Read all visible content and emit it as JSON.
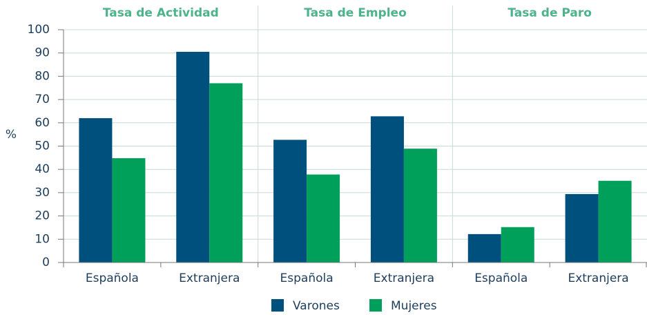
{
  "chart_data": {
    "type": "bar",
    "groups": [
      "Tasa de Actividad",
      "Tasa de Empleo",
      "Tasa de Paro"
    ],
    "categories": [
      "Española",
      "Extranjera",
      "Española",
      "Extranjera",
      "Española",
      "Extranjera"
    ],
    "series": [
      {
        "name": "Varones",
        "color": "#00507e",
        "values": [
          62,
          90.5,
          52.7,
          62.8,
          12.2,
          29.4
        ]
      },
      {
        "name": "Mujeres",
        "color": "#00a05a",
        "values": [
          44.8,
          77,
          37.8,
          48.9,
          15.2,
          35.1
        ]
      }
    ],
    "ylabel": "%",
    "ylim": [
      0,
      100
    ],
    "yticks": [
      0,
      10,
      20,
      30,
      40,
      50,
      60,
      70,
      80,
      90,
      100
    ],
    "grid": true,
    "legend": "bottom"
  }
}
